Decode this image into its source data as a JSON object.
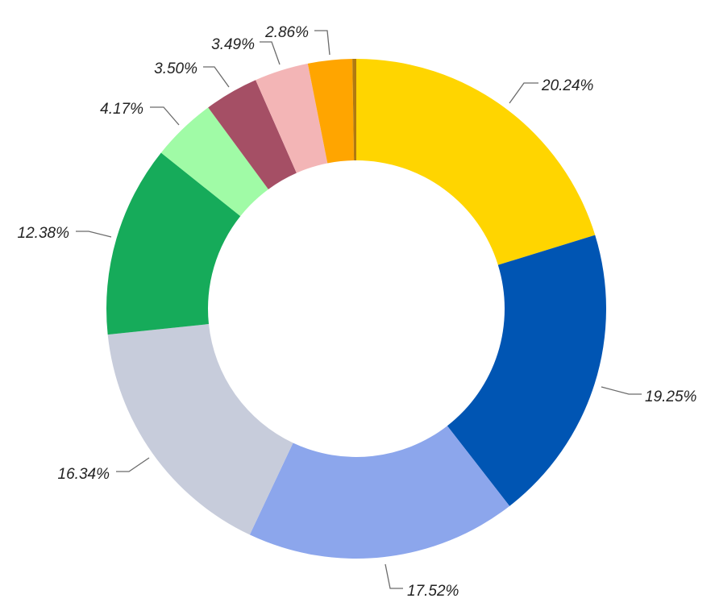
{
  "chart_data": {
    "type": "pie",
    "donut": true,
    "start_angle_deg": 0,
    "direction": "clockwise",
    "slices": [
      {
        "value": 20.24,
        "label": "20.24%",
        "color": "#FFD500"
      },
      {
        "value": 19.25,
        "label": "19.25%",
        "color": "#0055B3"
      },
      {
        "value": 17.52,
        "label": "17.52%",
        "color": "#8CA6EC"
      },
      {
        "value": 16.34,
        "label": "16.34%",
        "color": "#C7CCDB"
      },
      {
        "value": 12.38,
        "label": "12.38%",
        "color": "#16AB5A"
      },
      {
        "value": 4.17,
        "label": "4.17%",
        "color": "#A0FBA6"
      },
      {
        "value": 3.5,
        "label": "3.50%",
        "color": "#A54F65"
      },
      {
        "value": 3.49,
        "label": "3.49%",
        "color": "#F3B5B6"
      },
      {
        "value": 2.86,
        "label": "2.86%",
        "color": "#FFA500"
      },
      {
        "value": 0.25,
        "label": "",
        "color": "#B07A10"
      }
    ]
  }
}
